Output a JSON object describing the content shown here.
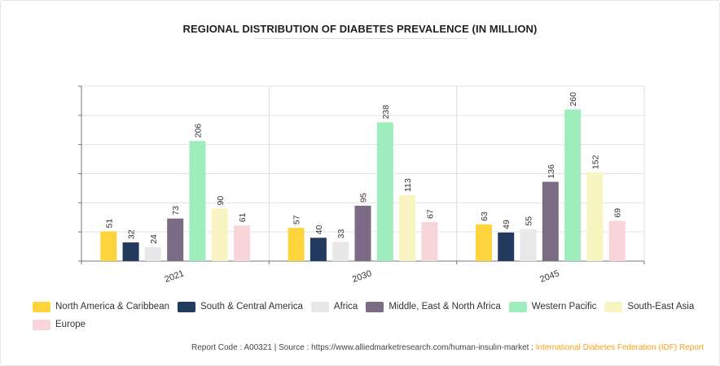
{
  "chart_data": {
    "type": "bar",
    "title": "REGIONAL DISTRIBUTION OF DIABETES PREVALENCE (IN MILLION)",
    "categories": [
      "2021",
      "2030",
      "2045"
    ],
    "ylim": [
      0,
      300
    ],
    "y_gridlines": [
      50,
      100,
      150,
      200,
      250,
      300
    ],
    "legend_position": "bottom",
    "series": [
      {
        "name": "North America & Caribbean",
        "color": "#fdd43b",
        "values": [
          51,
          57,
          63
        ]
      },
      {
        "name": "South & Central America",
        "color": "#223a5e",
        "values": [
          32,
          40,
          49
        ]
      },
      {
        "name": "Africa",
        "color": "#e8e8e8",
        "values": [
          24,
          33,
          55
        ]
      },
      {
        "name": "Middle, East & North Africa",
        "color": "#7b6b84",
        "values": [
          73,
          95,
          136
        ]
      },
      {
        "name": "Western Pacific",
        "color": "#9fecbd",
        "values": [
          206,
          238,
          260
        ]
      },
      {
        "name": "South-East Asia",
        "color": "#f8f5c3",
        "values": [
          90,
          113,
          152
        ]
      },
      {
        "name": "Europe",
        "color": "#f7d5d9",
        "values": [
          61,
          67,
          69
        ]
      }
    ]
  },
  "footer": {
    "text": "Report Code : A00321  |  Source : https://www.alliedmarketresearch.com/human-insulin-market : ",
    "highlight": "International Diabetes Federation (IDF) Report"
  }
}
